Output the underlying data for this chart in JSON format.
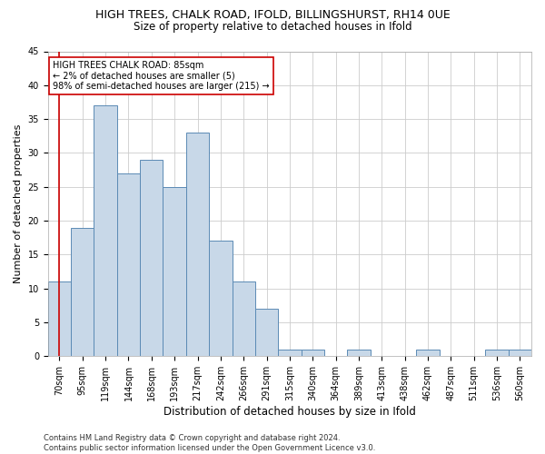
{
  "title": "HIGH TREES, CHALK ROAD, IFOLD, BILLINGSHURST, RH14 0UE",
  "subtitle": "Size of property relative to detached houses in Ifold",
  "xlabel": "Distribution of detached houses by size in Ifold",
  "ylabel": "Number of detached properties",
  "footnote": "Contains HM Land Registry data © Crown copyright and database right 2024.\nContains public sector information licensed under the Open Government Licence v3.0.",
  "categories": [
    "70sqm",
    "95sqm",
    "119sqm",
    "144sqm",
    "168sqm",
    "193sqm",
    "217sqm",
    "242sqm",
    "266sqm",
    "291sqm",
    "315sqm",
    "340sqm",
    "364sqm",
    "389sqm",
    "413sqm",
    "438sqm",
    "462sqm",
    "487sqm",
    "511sqm",
    "536sqm",
    "560sqm"
  ],
  "values": [
    11,
    19,
    37,
    27,
    29,
    25,
    33,
    17,
    11,
    7,
    1,
    1,
    0,
    1,
    0,
    0,
    1,
    0,
    0,
    1,
    1
  ],
  "bar_color": "#c8d8e8",
  "bar_edge_color": "#5b8ab5",
  "marker_color": "#cc0000",
  "annotation_text": "HIGH TREES CHALK ROAD: 85sqm\n← 2% of detached houses are smaller (5)\n98% of semi-detached houses are larger (215) →",
  "annotation_box_color": "#ffffff",
  "annotation_box_edge": "#cc0000",
  "ylim": [
    0,
    45
  ],
  "yticks": [
    0,
    5,
    10,
    15,
    20,
    25,
    30,
    35,
    40,
    45
  ],
  "grid_color": "#cccccc",
  "background_color": "#ffffff",
  "title_fontsize": 9,
  "subtitle_fontsize": 8.5,
  "ylabel_fontsize": 8,
  "xlabel_fontsize": 8.5,
  "tick_fontsize": 7,
  "annotation_fontsize": 7,
  "footnote_fontsize": 6
}
